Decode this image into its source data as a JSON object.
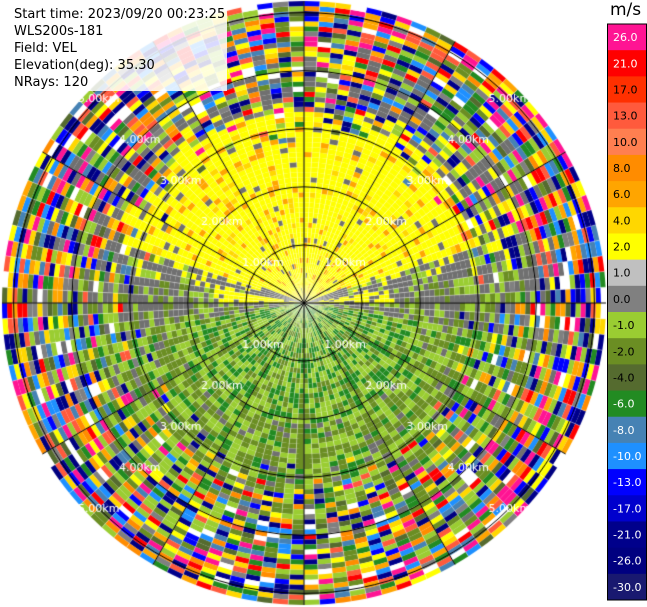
{
  "header": {
    "start_time": "Start time: 2023/09/20 00:23:25",
    "instrument": "WLS200s-181",
    "field": "Field: VEL",
    "elevation": "Elevation(deg): 35.30",
    "nrays": "NRays: 120"
  },
  "range_rings": {
    "unit": "km",
    "labels": [
      "1.00km",
      "2.00km",
      "3.00km",
      "4.00km",
      "5.00km"
    ]
  },
  "colorbar": {
    "unit": "m/s",
    "ticks": [
      "26.0",
      "21.0",
      "17.0",
      "13.0",
      "10.0",
      "8.0",
      "6.0",
      "4.0",
      "2.0",
      "1.0",
      "0.0",
      "-1.0",
      "-2.0",
      "-4.0",
      "-6.0",
      "-8.0",
      "-10.0",
      "-13.0",
      "-17.0",
      "-21.0",
      "-26.0",
      "-30.0"
    ],
    "colors": [
      "#ff1493",
      "#ff0000",
      "#ff3000",
      "#ff5a3c",
      "#ff7f50",
      "#ff8c00",
      "#ffa500",
      "#ffd700",
      "#ffff00",
      "#c0c0c0",
      "#808080",
      "#9acd32",
      "#6b8e23",
      "#556b2f",
      "#228b22",
      "#4682b4",
      "#1e90ff",
      "#0000ff",
      "#0000cd",
      "#00008b",
      "#000080",
      "#191970"
    ]
  },
  "field_values": {
    "near_range_pattern": "yellow north / gray middle / green south",
    "far_range_pattern": "noise"
  }
}
